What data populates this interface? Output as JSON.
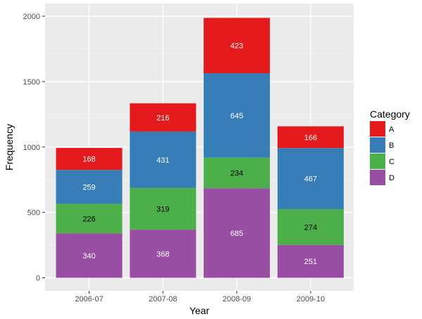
{
  "chart_data": {
    "type": "bar",
    "stacked": true,
    "categories": [
      "2006-07",
      "2007-08",
      "2008-09",
      "2009-10"
    ],
    "series": [
      {
        "name": "A",
        "values": [
          168,
          216,
          423,
          166
        ],
        "color": "#E41A1C",
        "label_color": "#ffffff"
      },
      {
        "name": "B",
        "values": [
          259,
          431,
          645,
          467
        ],
        "color": "#377EB8",
        "label_color": "#ffffff"
      },
      {
        "name": "C",
        "values": [
          226,
          319,
          234,
          274
        ],
        "color": "#4DAF4A",
        "label_color": "#000000"
      },
      {
        "name": "D",
        "values": [
          340,
          368,
          685,
          251
        ],
        "color": "#984EA3",
        "label_color": "#ffffff"
      }
    ],
    "stack_order_bottom_to_top": [
      "D",
      "C",
      "B",
      "A"
    ],
    "xlabel": "Year",
    "ylabel": "Frequency",
    "ylim": [
      0,
      2000
    ],
    "yticks": [
      0,
      500,
      1000,
      1500,
      2000
    ],
    "grid": true,
    "panel_background": "#EBEBEB",
    "legend": {
      "title": "Category",
      "position": "right",
      "entries": [
        "A",
        "B",
        "C",
        "D"
      ]
    }
  }
}
